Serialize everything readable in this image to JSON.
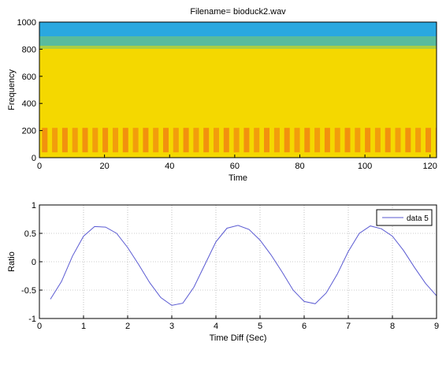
{
  "chart_data": [
    {
      "type": "heatmap",
      "title": "Filename= bioduck2.wav",
      "xlabel": "Time",
      "ylabel": "Frequency",
      "xlim": [
        0,
        122
      ],
      "ylim": [
        0,
        1000
      ],
      "xticks": [
        0,
        20,
        40,
        60,
        80,
        100,
        120
      ],
      "yticks": [
        0,
        200,
        400,
        600,
        800,
        1000
      ],
      "pulse_period": 3.1,
      "pulse_band": [
        40,
        220
      ],
      "colors": {
        "background_yellow": "#f4d800",
        "pulse_orange": "#f28a10",
        "top_cyan": "#2aa8e0",
        "transition_green": "#7ac870"
      }
    },
    {
      "type": "line",
      "xlabel": "Time Diff (Sec)",
      "ylabel": "Ratio",
      "xlim": [
        0,
        9
      ],
      "ylim": [
        -1,
        1
      ],
      "xticks": [
        0,
        1,
        2,
        3,
        4,
        5,
        6,
        7,
        8,
        9
      ],
      "yticks": [
        -1,
        -0.5,
        0,
        0.5,
        1
      ],
      "grid": true,
      "legend_placement": "top-right",
      "series": [
        {
          "name": "data 5",
          "color": "#5a5ad2",
          "x": [
            0.25,
            0.5,
            0.75,
            1.0,
            1.25,
            1.5,
            1.75,
            2.0,
            2.25,
            2.5,
            2.75,
            3.0,
            3.25,
            3.5,
            3.75,
            4.0,
            4.25,
            4.5,
            4.75,
            5.0,
            5.25,
            5.5,
            5.75,
            6.0,
            6.25,
            6.5,
            6.75,
            7.0,
            7.25,
            7.5,
            7.75,
            8.0,
            8.25,
            8.5,
            8.75,
            9.0
          ],
          "y": [
            -0.66,
            -0.35,
            0.1,
            0.45,
            0.62,
            0.61,
            0.5,
            0.25,
            -0.05,
            -0.37,
            -0.63,
            -0.77,
            -0.73,
            -0.45,
            -0.05,
            0.35,
            0.59,
            0.64,
            0.57,
            0.38,
            0.12,
            -0.18,
            -0.5,
            -0.7,
            -0.74,
            -0.55,
            -0.22,
            0.18,
            0.5,
            0.63,
            0.58,
            0.45,
            0.2,
            -0.1,
            -0.38,
            -0.6
          ]
        }
      ]
    }
  ]
}
